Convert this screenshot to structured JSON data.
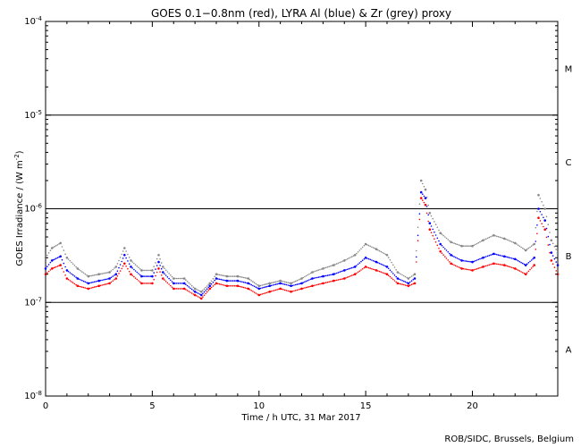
{
  "chart_data": {
    "type": "scatter",
    "title": "GOES 0.1−0.8nm (red), LYRA Al (blue) & Zr (grey) proxy",
    "xlabel": "Time / h UTC, 31 Mar 2017",
    "ylabel_text": "GOES Irradiance / (W m",
    "ylabel_exp": "-2",
    "ylabel_close": ")",
    "x_scale": "linear",
    "y_scale": "log",
    "xlim": [
      0,
      24
    ],
    "ylim": [
      1e-08,
      0.0001
    ],
    "grid": false,
    "x_ticks": [
      {
        "value": 0,
        "label": "0"
      },
      {
        "value": 5,
        "label": "5"
      },
      {
        "value": 10,
        "label": "10"
      },
      {
        "value": 15,
        "label": "15"
      },
      {
        "value": 20,
        "label": "20"
      }
    ],
    "y_ticks": [
      {
        "value": 0.0001,
        "mantissa": "10",
        "exponent": "-4"
      },
      {
        "value": 1e-05,
        "mantissa": "10",
        "exponent": "-5"
      },
      {
        "value": 1e-06,
        "mantissa": "10",
        "exponent": "-6"
      },
      {
        "value": 1e-07,
        "mantissa": "10",
        "exponent": "-7"
      },
      {
        "value": 1e-08,
        "mantissa": "10",
        "exponent": "-8"
      }
    ],
    "flare_class_lines": [
      1e-05,
      1e-06,
      1e-07
    ],
    "flare_class_labels": [
      {
        "label": "M",
        "value": 3.16e-05
      },
      {
        "label": "C",
        "value": 3.16e-06
      },
      {
        "label": "B",
        "value": 3.16e-07
      },
      {
        "label": "A",
        "value": 3.16e-08
      }
    ],
    "series": [
      {
        "color": "#ff0000",
        "x": [
          0,
          0.3,
          0.7,
          1.0,
          1.5,
          2.0,
          2.5,
          3.0,
          3.3,
          3.7,
          4.0,
          4.5,
          5.0,
          5.3,
          5.5,
          6.0,
          6.5,
          7.0,
          7.3,
          7.7,
          8.0,
          8.5,
          9.0,
          9.5,
          10.0,
          10.5,
          11.0,
          11.5,
          12.0,
          12.5,
          13.0,
          13.5,
          14.0,
          14.5,
          15.0,
          15.5,
          16.0,
          16.5,
          17.0,
          17.3,
          17.6,
          17.8,
          18.0,
          18.5,
          19.0,
          19.5,
          20.0,
          20.5,
          21.0,
          21.5,
          22.0,
          22.5,
          22.9,
          23.1,
          23.4,
          23.7,
          24.0
        ],
        "y": [
          2e-07,
          2.3e-07,
          2.5e-07,
          1.8e-07,
          1.5e-07,
          1.4e-07,
          1.5e-07,
          1.6e-07,
          1.8e-07,
          2.6e-07,
          2e-07,
          1.6e-07,
          1.6e-07,
          2.3e-07,
          1.8e-07,
          1.4e-07,
          1.4e-07,
          1.2e-07,
          1.1e-07,
          1.4e-07,
          1.6e-07,
          1.5e-07,
          1.5e-07,
          1.4e-07,
          1.2e-07,
          1.3e-07,
          1.4e-07,
          1.3e-07,
          1.4e-07,
          1.5e-07,
          1.6e-07,
          1.7e-07,
          1.8e-07,
          2e-07,
          2.4e-07,
          2.2e-07,
          2e-07,
          1.6e-07,
          1.5e-07,
          1.6e-07,
          1.3e-06,
          1.1e-06,
          6e-07,
          3.5e-07,
          2.6e-07,
          2.3e-07,
          2.2e-07,
          2.4e-07,
          2.6e-07,
          2.5e-07,
          2.3e-07,
          2e-07,
          2.5e-07,
          8e-07,
          6e-07,
          2.8e-07,
          2e-07
        ]
      },
      {
        "color": "#0000ff",
        "x": [
          0,
          0.3,
          0.7,
          1.0,
          1.5,
          2.0,
          2.5,
          3.0,
          3.3,
          3.7,
          4.0,
          4.5,
          5.0,
          5.3,
          5.5,
          6.0,
          6.5,
          7.0,
          7.3,
          7.7,
          8.0,
          8.5,
          9.0,
          9.5,
          10.0,
          10.5,
          11.0,
          11.5,
          12.0,
          12.5,
          13.0,
          13.5,
          14.0,
          14.5,
          15.0,
          15.5,
          16.0,
          16.5,
          17.0,
          17.3,
          17.6,
          17.8,
          18.0,
          18.5,
          19.0,
          19.5,
          20.0,
          20.5,
          21.0,
          21.5,
          22.0,
          22.5,
          22.9,
          23.1,
          23.4,
          23.7,
          24.0
        ],
        "y": [
          2.3e-07,
          2.8e-07,
          3.1e-07,
          2.2e-07,
          1.8e-07,
          1.6e-07,
          1.7e-07,
          1.8e-07,
          2e-07,
          3.2e-07,
          2.4e-07,
          1.9e-07,
          1.9e-07,
          2.7e-07,
          2.1e-07,
          1.6e-07,
          1.6e-07,
          1.3e-07,
          1.2e-07,
          1.5e-07,
          1.8e-07,
          1.7e-07,
          1.7e-07,
          1.6e-07,
          1.4e-07,
          1.5e-07,
          1.6e-07,
          1.5e-07,
          1.6e-07,
          1.8e-07,
          1.9e-07,
          2e-07,
          2.2e-07,
          2.4e-07,
          3e-07,
          2.7e-07,
          2.4e-07,
          1.8e-07,
          1.6e-07,
          1.8e-07,
          1.5e-06,
          1.3e-06,
          7e-07,
          4.2e-07,
          3.2e-07,
          2.8e-07,
          2.7e-07,
          3e-07,
          3.3e-07,
          3.1e-07,
          2.9e-07,
          2.5e-07,
          3e-07,
          1e-06,
          7.5e-07,
          3.4e-07,
          2.5e-07
        ]
      },
      {
        "color": "#888888",
        "x": [
          0,
          0.3,
          0.7,
          1.0,
          1.5,
          2.0,
          2.5,
          3.0,
          3.3,
          3.7,
          4.0,
          4.5,
          5.0,
          5.3,
          5.5,
          6.0,
          6.5,
          7.0,
          7.3,
          7.7,
          8.0,
          8.5,
          9.0,
          9.5,
          10.0,
          10.5,
          11.0,
          11.5,
          12.0,
          12.5,
          13.0,
          13.5,
          14.0,
          14.5,
          15.0,
          15.5,
          16.0,
          16.5,
          17.0,
          17.3,
          17.6,
          17.8,
          18.0,
          18.5,
          19.0,
          19.5,
          20.0,
          20.5,
          21.0,
          21.5,
          22.0,
          22.5,
          22.9,
          23.1,
          23.4,
          23.7,
          24.0
        ],
        "y": [
          3e-07,
          3.8e-07,
          4.3e-07,
          3e-07,
          2.3e-07,
          1.9e-07,
          2e-07,
          2.1e-07,
          2.4e-07,
          3.8e-07,
          2.8e-07,
          2.2e-07,
          2.2e-07,
          3.2e-07,
          2.4e-07,
          1.8e-07,
          1.8e-07,
          1.4e-07,
          1.3e-07,
          1.6e-07,
          2e-07,
          1.9e-07,
          1.9e-07,
          1.8e-07,
          1.5e-07,
          1.6e-07,
          1.7e-07,
          1.6e-07,
          1.8e-07,
          2.1e-07,
          2.3e-07,
          2.5e-07,
          2.8e-07,
          3.2e-07,
          4.2e-07,
          3.7e-07,
          3.2e-07,
          2.1e-07,
          1.8e-07,
          2e-07,
          2e-06,
          1.6e-06,
          9e-07,
          5.5e-07,
          4.4e-07,
          4e-07,
          4e-07,
          4.6e-07,
          5.2e-07,
          4.8e-07,
          4.3e-07,
          3.6e-07,
          4.2e-07,
          1.4e-06,
          1e-06,
          4.6e-07,
          3.4e-07
        ]
      }
    ]
  },
  "credit": "ROB/SIDC, Brussels, Belgium"
}
